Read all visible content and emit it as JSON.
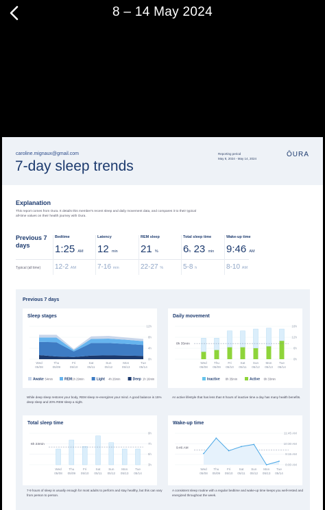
{
  "nav": {
    "title": "8 – 14 May 2024"
  },
  "report": {
    "email": "caroline.mignaux@gmail.com",
    "title": "7-day sleep trends",
    "period_label": "Reporting period",
    "period_value": "May 8, 2024 - May 14, 2024",
    "logo": "ŌURA"
  },
  "explanation": {
    "title": "Explanation",
    "text": "This report comes from Oura. It details this member's recent sleep and daily movement data, and compares it to their typical all-time values on their health journey with Oura."
  },
  "stats": {
    "heading": "Previous 7 days",
    "typical_label": "Typical (all time)",
    "bedtime": {
      "label": "Bedtime",
      "value": "1:25",
      "unit": "AM",
      "typ": "12-2",
      "typ_unit": "AM"
    },
    "latency": {
      "label": "Latency",
      "value": "12",
      "unit": "min",
      "typ": "7-16",
      "typ_unit": "min"
    },
    "rem": {
      "label": "REM sleep",
      "value": "21",
      "unit": "%",
      "typ": "22-27",
      "typ_unit": "%"
    },
    "total": {
      "label": "Total sleep time",
      "value_h": "6",
      "unit_h": "h",
      "value_m": "23",
      "unit_m": "min",
      "typ": "5-8",
      "typ_unit": "h"
    },
    "wake": {
      "label": "Wake-up time",
      "value": "9:46",
      "unit": "AM",
      "typ": "8-10",
      "typ_unit": "AM"
    }
  },
  "previous": {
    "title": "Previous 7 days"
  },
  "days": [
    {
      "dow": "Wed",
      "date": "05/08"
    },
    {
      "dow": "Thu",
      "date": "05/09"
    },
    {
      "dow": "Fri",
      "date": "05/10"
    },
    {
      "dow": "Sat",
      "date": "05/11"
    },
    {
      "dow": "Sun",
      "date": "05/12"
    },
    {
      "dow": "Mon",
      "date": "05/13"
    },
    {
      "dow": "Tue",
      "date": "05/14"
    }
  ],
  "sleep_stages": {
    "title": "Sleep stages",
    "desc": "While deep sleep restores your body, REM sleep re-energizes your mind. A good balance is 15% deep sleep and 20% REM sleep a night.",
    "y_ticks": [
      "12h",
      "8h",
      "4h",
      "0h"
    ],
    "legend": [
      {
        "name": "Awake",
        "value": "54min",
        "color": "#c9d6ea"
      },
      {
        "name": "REM",
        "value": "1h 29min",
        "color": "#66b4ee"
      },
      {
        "name": "Light",
        "value": "4h 26min",
        "color": "#3e7cc4"
      },
      {
        "name": "Deep",
        "value": "1h 16min",
        "color": "#1c3a6e"
      }
    ]
  },
  "daily_movement": {
    "title": "Daily movement",
    "desc": "An active lifestyle that has less than 8 hours of inactive time a day has many health benefits.",
    "y_ticks": [
      "18h",
      "12h",
      "6h",
      "0h"
    ],
    "ref_label": "8h 35min",
    "legend": [
      {
        "name": "Inactive",
        "value": "8h 35min",
        "color": "#66c4ec"
      },
      {
        "name": "Active",
        "value": "6h 33min",
        "color": "#8ed43a"
      }
    ]
  },
  "total_sleep": {
    "title": "Total sleep time",
    "desc": "7-9 hours of sleep is usually enough for most adults to perform and stay healthy, but this can vary from person to person.",
    "y_ticks": [
      "9h",
      "7h",
      "5h",
      "3h"
    ],
    "ref_label": "6h 23min"
  },
  "wakeup": {
    "title": "Wake-up time",
    "desc": "A consistent sleep routine with a regular bedtime and wake-up time keeps you well-rested and energized throughout the week.",
    "y_ticks": [
      "11:45 AM",
      "10:30 AM",
      "9:15 AM",
      "8:00 AM"
    ],
    "ref_label": "9:46 AM"
  },
  "colors": {
    "navy": "#1c3a6e",
    "light_blue": "#66c4ec",
    "green": "#8ed43a",
    "pale": "#d6e6f6"
  },
  "chart_data": [
    {
      "type": "area",
      "title": "Sleep stages",
      "categories": [
        "Wed 05/08",
        "Thu 05/09",
        "Fri 05/10",
        "Sat 05/11",
        "Sun 05/12",
        "Mon 05/13",
        "Tue 05/14"
      ],
      "ylim": [
        0,
        12
      ],
      "series": [
        {
          "name": "Deep",
          "values": [
            1.5,
            1.0,
            0.8,
            1.3,
            1.4,
            1.3,
            1.2
          ]
        },
        {
          "name": "Light",
          "values": [
            4.8,
            5.2,
            2.0,
            4.6,
            4.5,
            4.3,
            4.0
          ]
        },
        {
          "name": "REM",
          "values": [
            1.6,
            1.7,
            0.5,
            1.5,
            1.6,
            1.5,
            1.4
          ]
        },
        {
          "name": "Awake",
          "values": [
            1.0,
            1.0,
            0.4,
            0.9,
            1.0,
            0.8,
            0.8
          ]
        }
      ]
    },
    {
      "type": "bar",
      "title": "Daily movement",
      "categories": [
        "Wed 05/08",
        "Thu 05/09",
        "Fri 05/10",
        "Sat 05/11",
        "Sun 05/12",
        "Mon 05/13",
        "Tue 05/14"
      ],
      "ylim": [
        0,
        18
      ],
      "series": [
        {
          "name": "Inactive",
          "values": [
            7.5,
            6.5,
            9.0,
            9.0,
            10.5,
            10.0,
            6.5
          ]
        },
        {
          "name": "Active",
          "values": [
            4.0,
            5.0,
            6.5,
            6.5,
            6.0,
            7.0,
            10.0
          ]
        }
      ]
    },
    {
      "type": "bar",
      "title": "Total sleep time",
      "categories": [
        "Wed 05/08",
        "Thu 05/09",
        "Fri 05/10",
        "Sat 05/11",
        "Sun 05/12",
        "Mon 05/13",
        "Tue 05/14"
      ],
      "ylim": [
        3,
        9
      ],
      "values": [
        6.0,
        7.7,
        6.5,
        8.5,
        7.2,
        6.0,
        6.0
      ]
    },
    {
      "type": "line",
      "title": "Wake-up time",
      "categories": [
        "Wed 05/08",
        "Thu 05/09",
        "Fri 05/10",
        "Sat 05/11",
        "Sun 05/12",
        "Mon 05/13",
        "Tue 05/14"
      ],
      "ylim": [
        "8:00 AM",
        "11:45 AM"
      ],
      "values": [
        "9:20 AM",
        "11:10 AM",
        "9:40 AM",
        "10:10 AM",
        "10:25 AM",
        "8:00 AM",
        "8:25 AM"
      ]
    }
  ]
}
